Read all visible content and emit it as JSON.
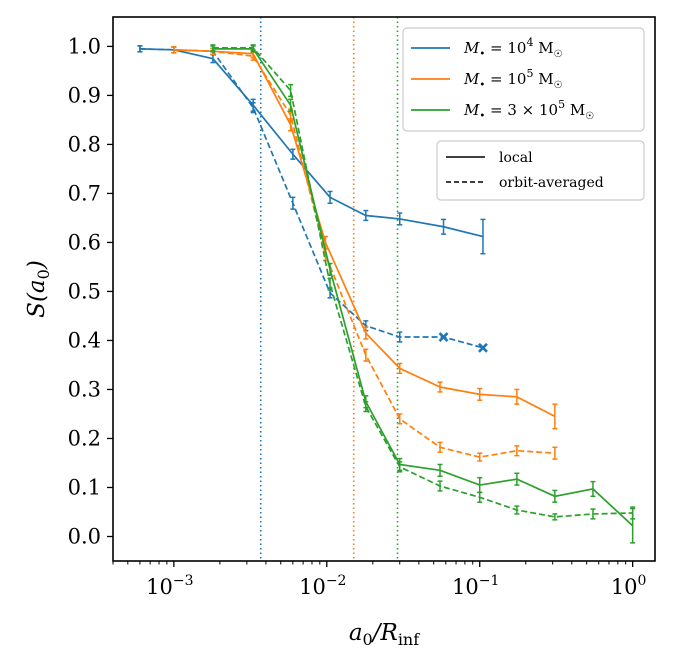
{
  "chart_data": {
    "type": "line",
    "title": "",
    "xlabel": "a0/Rinf",
    "ylabel": "S(a0)",
    "xscale": "log",
    "xlim": [
      0.0004,
      1.4
    ],
    "ylim": [
      -0.05,
      1.06
    ],
    "x_ticks": [
      {
        "value": 0.001,
        "base": "10",
        "exp": "−3"
      },
      {
        "value": 0.01,
        "base": "10",
        "exp": "−2"
      },
      {
        "value": 0.1,
        "base": "10",
        "exp": "−1"
      },
      {
        "value": 1,
        "base": "10",
        "exp": "0"
      }
    ],
    "y_ticks": [
      "0.0",
      "0.1",
      "0.2",
      "0.3",
      "0.4",
      "0.5",
      "0.6",
      "0.7",
      "0.8",
      "0.9",
      "1.0"
    ],
    "legend_masses": [
      {
        "name": "M = 10^4 M☉",
        "prefix": "",
        "mantissa": "10",
        "exp": "4",
        "color": "#1f77b4"
      },
      {
        "name": "M = 10^5 M☉",
        "prefix": "",
        "mantissa": "10",
        "exp": "5",
        "color": "#ff7f0e"
      },
      {
        "name": "M = 3 × 10^5 M☉",
        "prefix": "3 × ",
        "mantissa": "10",
        "exp": "5",
        "color": "#2ca02c"
      }
    ],
    "legend_styles": [
      {
        "label": "local",
        "dash": "solid"
      },
      {
        "label": "orbit-averaged",
        "dash": "dashed"
      }
    ],
    "vlines": [
      {
        "x": 0.0037,
        "color": "#1f77b4"
      },
      {
        "x": 0.015,
        "color": "#ff7f0e"
      },
      {
        "x": 0.029,
        "color": "#2ca02c"
      }
    ],
    "series": [
      {
        "name": "1e4 local",
        "color": "#1f77b4",
        "dash": "solid",
        "x": [
          0.0006,
          0.001,
          0.0018,
          0.0033,
          0.006,
          0.0105,
          0.018,
          0.03,
          0.058,
          0.105
        ],
        "y": [
          0.995,
          0.993,
          0.975,
          0.88,
          0.78,
          0.692,
          0.655,
          0.648,
          0.632,
          0.612
        ],
        "err": [
          0.006,
          0.006,
          0.008,
          0.012,
          0.01,
          0.012,
          0.01,
          0.012,
          0.015,
          0.035
        ]
      },
      {
        "name": "1e4 orbit-averaged",
        "color": "#1f77b4",
        "dash": "dashed",
        "x": [
          0.0006,
          0.001,
          0.0018,
          0.0033,
          0.006,
          0.0105,
          0.018,
          0.03,
          0.058,
          0.105
        ],
        "y": [
          0.995,
          0.993,
          0.99,
          0.875,
          0.68,
          0.497,
          0.43,
          0.407,
          0.407,
          0.385
        ],
        "err": [
          0.006,
          0.006,
          0.006,
          0.01,
          0.012,
          0.01,
          0.01,
          0.01,
          0.0,
          0.0
        ],
        "cross_markers": [
          0.058,
          0.105
        ]
      },
      {
        "name": "1e5 local",
        "color": "#ff7f0e",
        "dash": "solid",
        "x": [
          0.001,
          0.0018,
          0.0033,
          0.0058,
          0.0098,
          0.018,
          0.03,
          0.055,
          0.1,
          0.175,
          0.31
        ],
        "y": [
          0.993,
          0.99,
          0.985,
          0.84,
          0.6,
          0.415,
          0.343,
          0.305,
          0.29,
          0.285,
          0.245
        ],
        "err": [
          0.006,
          0.006,
          0.008,
          0.012,
          0.012,
          0.012,
          0.01,
          0.01,
          0.012,
          0.015,
          0.025
        ]
      },
      {
        "name": "1e5 orbit-averaged",
        "color": "#ff7f0e",
        "dash": "dashed",
        "x": [
          0.001,
          0.0018,
          0.0033,
          0.0058,
          0.0098,
          0.018,
          0.03,
          0.055,
          0.1,
          0.175,
          0.31
        ],
        "y": [
          0.993,
          0.99,
          0.98,
          0.86,
          0.575,
          0.37,
          0.24,
          0.182,
          0.162,
          0.175,
          0.17
        ],
        "err": [
          0.006,
          0.006,
          0.008,
          0.012,
          0.012,
          0.012,
          0.01,
          0.01,
          0.008,
          0.01,
          0.012
        ]
      },
      {
        "name": "3e5 local",
        "color": "#2ca02c",
        "dash": "solid",
        "x": [
          0.0018,
          0.0033,
          0.0058,
          0.0105,
          0.018,
          0.03,
          0.055,
          0.1,
          0.175,
          0.31,
          0.55,
          1.0
        ],
        "y": [
          0.995,
          0.995,
          0.88,
          0.545,
          0.275,
          0.147,
          0.135,
          0.105,
          0.117,
          0.082,
          0.097,
          0.022
        ],
        "err": [
          0.006,
          0.006,
          0.012,
          0.012,
          0.012,
          0.012,
          0.012,
          0.015,
          0.012,
          0.012,
          0.015,
          0.035
        ]
      },
      {
        "name": "3e5 orbit-averaged",
        "color": "#2ca02c",
        "dash": "dashed",
        "x": [
          0.0018,
          0.0033,
          0.0058,
          0.0105,
          0.018,
          0.03,
          0.055,
          0.1,
          0.175,
          0.31,
          0.55,
          1.0
        ],
        "y": [
          0.997,
          0.997,
          0.91,
          0.515,
          0.265,
          0.142,
          0.103,
          0.08,
          0.054,
          0.04,
          0.046,
          0.048
        ],
        "err": [
          0.006,
          0.006,
          0.012,
          0.012,
          0.01,
          0.01,
          0.01,
          0.01,
          0.008,
          0.006,
          0.01,
          0.012
        ]
      }
    ]
  }
}
